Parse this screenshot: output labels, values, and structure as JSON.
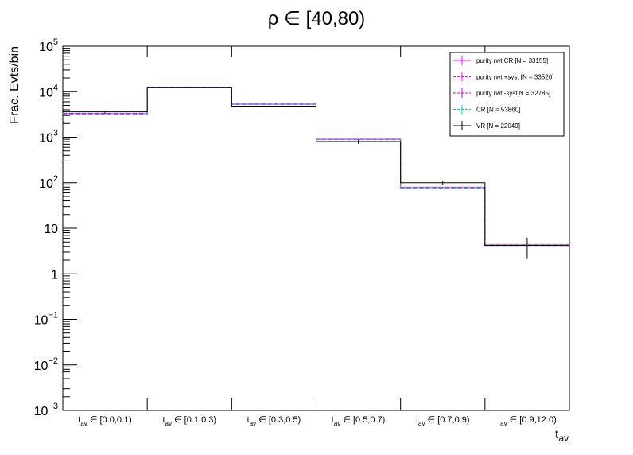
{
  "chart_data": {
    "type": "histogram-step",
    "title": "ρ ∈ [40,80)",
    "xlabel": "t",
    "xlabel_sub": "av",
    "ylabel": "Frac. Evts/bin",
    "yscale": "log",
    "ylim": [
      0.001,
      100000
    ],
    "y_ticks": [
      {
        "value": 0.001,
        "base": "10",
        "exp": "−3"
      },
      {
        "value": 0.01,
        "base": "10",
        "exp": "−2"
      },
      {
        "value": 0.1,
        "base": "10",
        "exp": "−1"
      },
      {
        "value": 1,
        "base": "1",
        "exp": ""
      },
      {
        "value": 10,
        "base": "10",
        "exp": ""
      },
      {
        "value": 100,
        "base": "10",
        "exp": "2"
      },
      {
        "value": 1000,
        "base": "10",
        "exp": "3"
      },
      {
        "value": 10000,
        "base": "10",
        "exp": "4"
      },
      {
        "value": 100000,
        "base": "10",
        "exp": "5"
      }
    ],
    "categories": [
      {
        "sym": "t",
        "sub": "av",
        "range": " ∈ [0.0,0.1)"
      },
      {
        "sym": "t",
        "sub": "av",
        "range": " ∈ [0.1,0.3)"
      },
      {
        "sym": "t",
        "sub": "av",
        "range": " ∈ [0.3,0.5)"
      },
      {
        "sym": "t",
        "sub": "av",
        "range": " ∈ [0.5,0.7)"
      },
      {
        "sym": "t",
        "sub": "av",
        "range": " ∈ [0.7,0.9)"
      },
      {
        "sym": "t",
        "sub": "av",
        "range": " ∈ [0.9,12.0)"
      }
    ],
    "legend_position": "top-right",
    "series": [
      {
        "name": "purity rwt CR [N = 33155]",
        "color": "#ff00ff",
        "style": "solid",
        "values": [
          3300,
          12500,
          5300,
          900,
          78,
          4.3
        ]
      },
      {
        "name": "purity rwt +syst [N = 33526]",
        "color": "#ff00ff",
        "style": "dashed",
        "values": [
          3350,
          12600,
          5350,
          910,
          79,
          4.35
        ]
      },
      {
        "name": "purity rwt -syst[N = 32785]",
        "color": "#cc00cc",
        "style": "dashed",
        "values": [
          3250,
          12400,
          5250,
          890,
          77,
          4.25
        ]
      },
      {
        "name": "CR [N = 53860]",
        "color": "#00cccc",
        "style": "dashed",
        "values": [
          3200,
          12300,
          5200,
          880,
          76,
          4.2
        ]
      },
      {
        "name": "VR [N = 22049]",
        "color": "#000000",
        "style": "solid",
        "values": [
          3600,
          12500,
          4800,
          800,
          100,
          4.2
        ],
        "errors": [
          250,
          400,
          250,
          80,
          12,
          2.0
        ]
      }
    ]
  }
}
